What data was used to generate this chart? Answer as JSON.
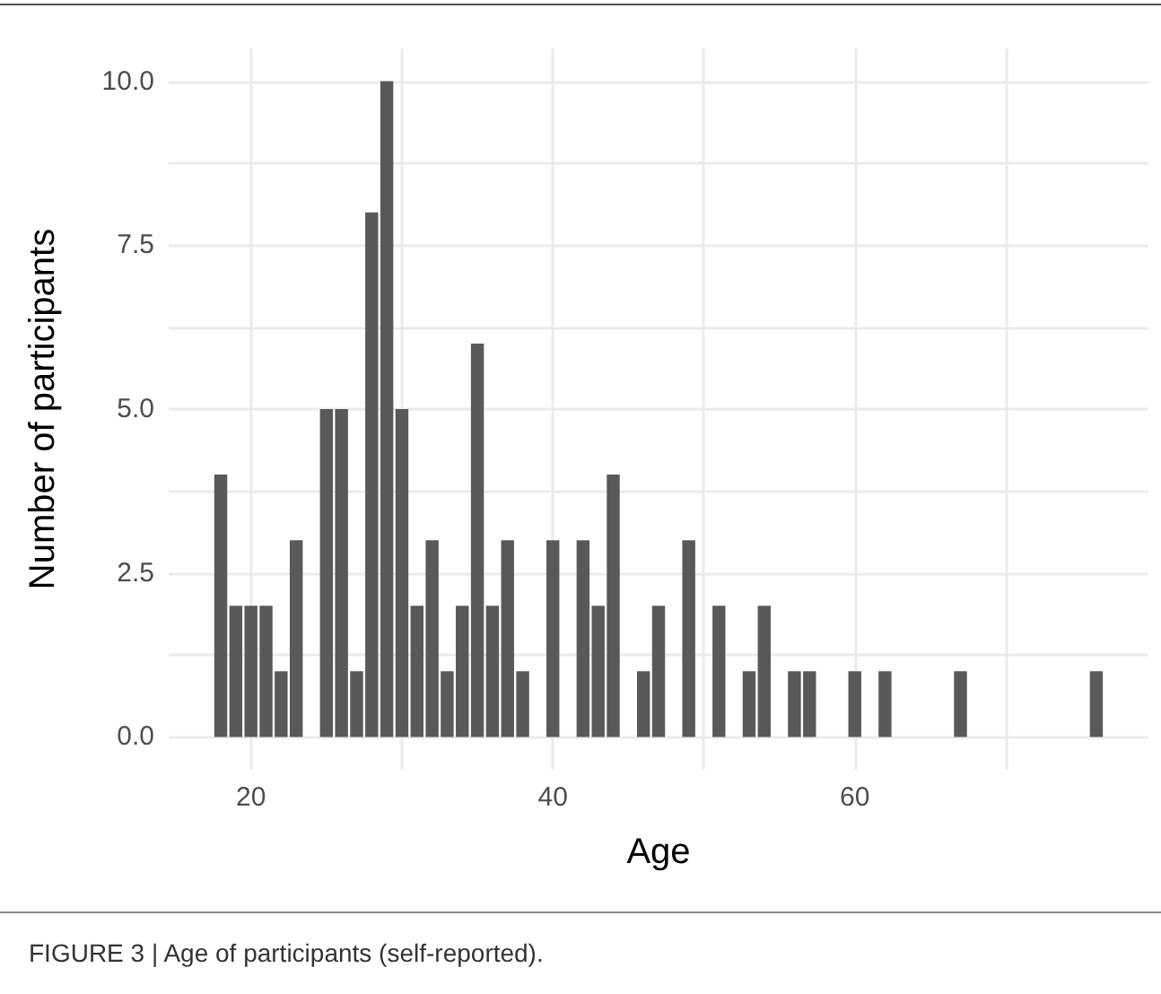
{
  "chart_data": {
    "type": "histogram",
    "xlabel": "Age",
    "ylabel": "Number of participants",
    "annotations": [
      "FIGURE 3 | Age of participants (self-reported)."
    ],
    "bins": [
      17.5,
      18.5,
      19.5,
      20.5,
      21.5,
      22.5,
      23.5,
      24.5,
      25.5,
      26.5,
      27.5,
      28.5,
      29.5,
      30.5,
      31.5,
      32.5,
      33.5,
      34.5,
      35.5,
      36.5,
      37.5,
      38.5,
      39.5,
      40.5,
      41.5,
      42.5,
      43.5,
      44.5,
      45.5,
      46.5,
      47.5,
      48.5,
      49.5,
      50.5,
      51.5,
      52.5,
      53.5,
      54.5,
      55.5,
      56.5,
      57.5,
      58.5,
      59.5,
      60.5,
      61.5,
      62.5,
      63.5,
      64.5,
      65.5,
      66.5,
      67.5,
      68.5,
      69.5,
      70.5,
      71.5,
      72.5,
      73.5,
      74.5,
      75.5,
      76.5
    ],
    "values": [
      4,
      2,
      2,
      2,
      1,
      3,
      0,
      5,
      5,
      1,
      8,
      10,
      5,
      2,
      3,
      1,
      2,
      6,
      2,
      3,
      1,
      0,
      3,
      0,
      3,
      2,
      4,
      0,
      1,
      2,
      0,
      3,
      0,
      2,
      0,
      1,
      2,
      0,
      1,
      1,
      0,
      0,
      1,
      0,
      1,
      0,
      0,
      0,
      0,
      1,
      0,
      0,
      0,
      0,
      0,
      0,
      0,
      0,
      1
    ],
    "color": "#595959",
    "xlim": [
      14.55,
      79.45
    ],
    "xticks": [
      20,
      {
        "value": 30,
        "label": null
      },
      40,
      {
        "value": 50,
        "label": null
      },
      60,
      {
        "value": 70,
        "label": null
      }
    ],
    "ylim": [
      -0.5,
      10.5
    ],
    "yticks": [
      {
        "value": 0,
        "label": "0.0"
      },
      {
        "value": 1.25,
        "label": null
      },
      {
        "value": 2.5,
        "label": "2.5"
      },
      {
        "value": 3.75,
        "label": null
      },
      {
        "value": 5,
        "label": "5.0"
      },
      {
        "value": 6.25,
        "label": null
      },
      {
        "value": 7.5,
        "label": "7.5"
      },
      {
        "value": 8.75,
        "label": null
      },
      {
        "value": 10,
        "label": "10.0"
      }
    ],
    "grid": true
  }
}
